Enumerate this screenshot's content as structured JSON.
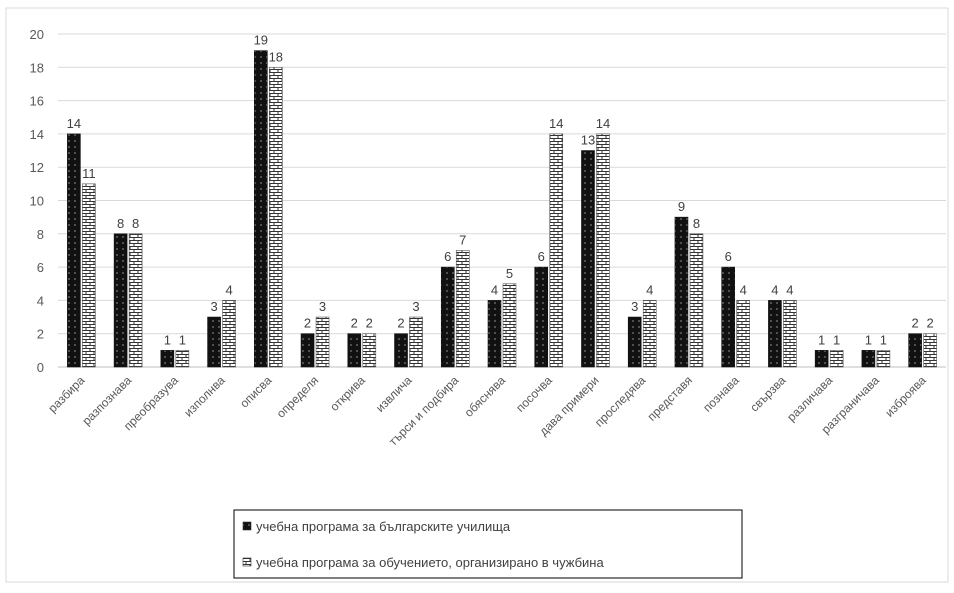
{
  "chart_data": {
    "type": "bar",
    "title": "",
    "xlabel": "",
    "ylabel": "",
    "ylim": [
      0,
      20
    ],
    "yticks": [
      0,
      2,
      4,
      6,
      8,
      10,
      12,
      14,
      16,
      18,
      20
    ],
    "grid": true,
    "legend_position": "bottom",
    "categories": [
      "разбира",
      "разпознава",
      "преобразува",
      "изполнва",
      "описва",
      "определя",
      "открива",
      "извлича",
      "търси и подбира",
      "обяснява",
      "посочва",
      "дава примери",
      "проследява",
      "представя",
      "познава",
      "свързва",
      "различава",
      "разграничава",
      "изброява"
    ],
    "series": [
      {
        "name": "учебна програма за българските училища",
        "color": "#1a1a1a",
        "pattern": "black-dots",
        "values": [
          14,
          8,
          1,
          3,
          19,
          2,
          2,
          2,
          6,
          4,
          6,
          13,
          3,
          9,
          6,
          4,
          1,
          1,
          2
        ]
      },
      {
        "name": "учебна програма за обучението, организирано в чужбина",
        "color": "#ffffff",
        "pattern": "brick",
        "values": [
          11,
          8,
          1,
          4,
          18,
          3,
          2,
          3,
          7,
          5,
          14,
          14,
          4,
          8,
          4,
          4,
          1,
          1,
          2
        ]
      }
    ]
  }
}
